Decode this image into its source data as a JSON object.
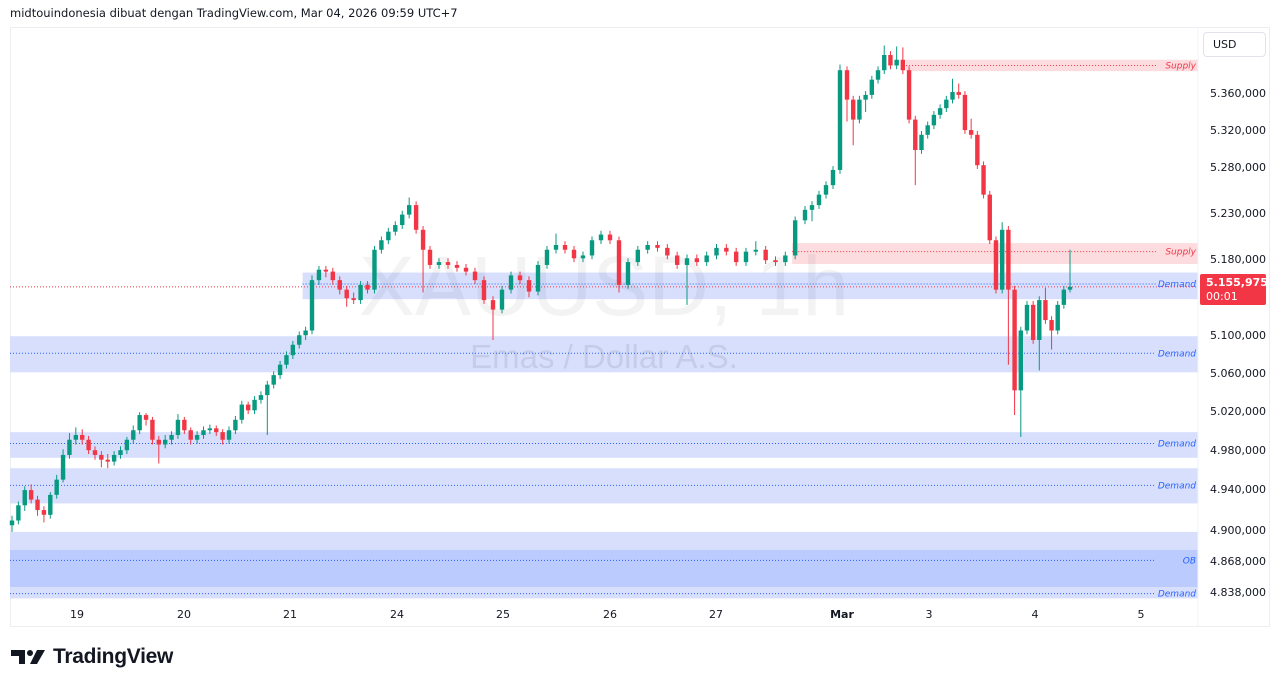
{
  "header": {
    "text": "midtouindonesia dibuat dengan TradingView.com, Mar 04, 2026 09:59 UTC+7"
  },
  "currency_button": "USD",
  "watermark": {
    "symbol": "XAUUSD, 1h",
    "description": "Emas / Dollar A.S."
  },
  "last_price": {
    "value": "5.155,975",
    "countdown": "00:01"
  },
  "brand": "TradingView",
  "colors": {
    "up": "#089981",
    "down": "#f23645",
    "demand": "#2962ff",
    "supply": "#f23645",
    "demand_fill": "#d7dffd",
    "ob_fill": "#bccbfd",
    "supply_fill": "#fcdcdf"
  },
  "chart_data": {
    "type": "candlestick",
    "symbol": "XAUUSD",
    "interval": "1h",
    "ylim": [
      4828,
      5420
    ],
    "y_ticks": [
      {
        "value": 5360,
        "label": "5.360,000"
      },
      {
        "value": 5320,
        "label": "5.320,000"
      },
      {
        "value": 5280,
        "label": "5.280,000"
      },
      {
        "value": 5230,
        "label": "5.230,000"
      },
      {
        "value": 5180,
        "label": "5.180,000"
      },
      {
        "value": 5100,
        "label": "5.100,000"
      },
      {
        "value": 5060,
        "label": "5.060,000"
      },
      {
        "value": 5020,
        "label": "5.020,000"
      },
      {
        "value": 4980,
        "label": "4.980,000"
      },
      {
        "value": 4940,
        "label": "4.940,000"
      },
      {
        "value": 4900,
        "label": "4.900,000"
      },
      {
        "value": 4868,
        "label": "4.868,000"
      },
      {
        "value": 4838,
        "label": "4.838,000"
      }
    ],
    "x_ticks": [
      "19",
      "20",
      "21",
      "24",
      "25",
      "26",
      "27",
      "Mar",
      "3",
      "4",
      "5"
    ],
    "zones": [
      {
        "label": "Supply",
        "kind": "supply",
        "top": 5395,
        "bottom": 5383,
        "line": 5389,
        "start_candle": 120
      },
      {
        "label": "Supply",
        "kind": "supply",
        "top": 5202,
        "bottom": 5180,
        "line": 5193,
        "start_candle": 103
      },
      {
        "label": "Demand",
        "kind": "demand",
        "top": 5171,
        "bottom": 5143,
        "line": 5159,
        "start_candle": 46
      },
      {
        "label": "Demand",
        "kind": "demand",
        "top": 5104,
        "bottom": 5066,
        "line": 5086,
        "start_candle": 0
      },
      {
        "label": "Demand",
        "kind": "demand",
        "top": 5003,
        "bottom": 4976,
        "line": 4991,
        "start_candle": 0
      },
      {
        "label": "Demand",
        "kind": "demand",
        "top": 4965,
        "bottom": 4928,
        "line": 4947,
        "start_candle": 0
      },
      {
        "label": "Demand",
        "kind": "demand",
        "top": 4898,
        "bottom": 4828,
        "line": 4833,
        "start_candle": 0
      },
      {
        "label": "OB",
        "kind": "ob",
        "top": 4879,
        "bottom": 4840,
        "line": 4868,
        "start_candle": 0
      }
    ],
    "ohlc": [
      [
        4905,
        4915,
        4898,
        4910
      ],
      [
        4910,
        4930,
        4906,
        4926
      ],
      [
        4926,
        4946,
        4920,
        4942
      ],
      [
        4942,
        4948,
        4928,
        4932
      ],
      [
        4932,
        4936,
        4915,
        4921
      ],
      [
        4921,
        4925,
        4908,
        4916
      ],
      [
        4916,
        4940,
        4912,
        4937
      ],
      [
        4937,
        4958,
        4933,
        4953
      ],
      [
        4953,
        4985,
        4950,
        4979
      ],
      [
        4979,
        5002,
        4975,
        4995
      ],
      [
        4995,
        5008,
        4990,
        5000
      ],
      [
        5000,
        5006,
        4990,
        4995
      ],
      [
        4995,
        4999,
        4980,
        4984
      ],
      [
        4984,
        4988,
        4974,
        4979
      ],
      [
        4979,
        4983,
        4966,
        4974
      ],
      [
        4974,
        4980,
        4965,
        4972
      ],
      [
        4972,
        4983,
        4968,
        4979
      ],
      [
        4979,
        4988,
        4975,
        4984
      ],
      [
        4984,
        4998,
        4980,
        4995
      ],
      [
        4995,
        5010,
        4991,
        5005
      ],
      [
        5005,
        5024,
        5001,
        5021
      ],
      [
        5021,
        5023,
        5010,
        5016
      ],
      [
        5016,
        5019,
        4990,
        4995
      ],
      [
        4995,
        4999,
        4970,
        4990
      ],
      [
        4990,
        5000,
        4986,
        4995
      ],
      [
        4995,
        5004,
        4990,
        5000
      ],
      [
        5000,
        5022,
        4996,
        5016
      ],
      [
        5016,
        5019,
        5001,
        5005
      ],
      [
        5005,
        5008,
        4990,
        4995
      ],
      [
        4995,
        5004,
        4991,
        5000
      ],
      [
        5000,
        5009,
        4996,
        5005
      ],
      [
        5005,
        5011,
        5001,
        5007
      ],
      [
        5007,
        5010,
        4999,
        5003
      ],
      [
        5003,
        5006,
        4990,
        4995
      ],
      [
        4995,
        5009,
        4991,
        5005
      ],
      [
        5005,
        5020,
        5001,
        5016
      ],
      [
        5016,
        5036,
        5012,
        5032
      ],
      [
        5032,
        5035,
        5022,
        5026
      ],
      [
        5026,
        5041,
        5022,
        5037
      ],
      [
        5037,
        5046,
        5033,
        5042
      ],
      [
        5042,
        5057,
        5000,
        5053
      ],
      [
        5053,
        5067,
        5049,
        5063
      ],
      [
        5063,
        5078,
        5059,
        5074
      ],
      [
        5074,
        5088,
        5070,
        5084
      ],
      [
        5084,
        5099,
        5080,
        5095
      ],
      [
        5095,
        5109,
        5091,
        5105
      ],
      [
        5105,
        5114,
        5100,
        5110
      ],
      [
        5110,
        5168,
        5106,
        5163
      ],
      [
        5163,
        5178,
        5158,
        5174
      ],
      [
        5174,
        5178,
        5166,
        5172
      ],
      [
        5172,
        5176,
        5158,
        5163
      ],
      [
        5163,
        5167,
        5148,
        5153
      ],
      [
        5153,
        5157,
        5135,
        5144
      ],
      [
        5144,
        5150,
        5138,
        5142
      ],
      [
        5142,
        5162,
        5138,
        5158
      ],
      [
        5158,
        5162,
        5149,
        5153
      ],
      [
        5153,
        5199,
        5149,
        5195
      ],
      [
        5195,
        5209,
        5191,
        5205
      ],
      [
        5205,
        5218,
        5201,
        5214
      ],
      [
        5214,
        5225,
        5210,
        5221
      ],
      [
        5221,
        5236,
        5217,
        5232
      ],
      [
        5232,
        5250,
        5228,
        5242
      ],
      [
        5242,
        5246,
        5212,
        5216
      ],
      [
        5216,
        5220,
        5150,
        5195
      ],
      [
        5195,
        5199,
        5175,
        5179
      ],
      [
        5179,
        5186,
        5175,
        5182
      ],
      [
        5182,
        5186,
        5175,
        5179
      ],
      [
        5179,
        5183,
        5172,
        5176
      ],
      [
        5176,
        5180,
        5168,
        5172
      ],
      [
        5172,
        5176,
        5159,
        5163
      ],
      [
        5163,
        5167,
        5138,
        5142
      ],
      [
        5142,
        5146,
        5100,
        5132
      ],
      [
        5132,
        5157,
        5128,
        5153
      ],
      [
        5153,
        5172,
        5149,
        5168
      ],
      [
        5168,
        5172,
        5159,
        5163
      ],
      [
        5163,
        5167,
        5145,
        5151
      ],
      [
        5151,
        5183,
        5147,
        5179
      ],
      [
        5179,
        5199,
        5175,
        5195
      ],
      [
        5195,
        5212,
        5191,
        5200
      ],
      [
        5200,
        5204,
        5191,
        5195
      ],
      [
        5195,
        5199,
        5182,
        5186
      ],
      [
        5186,
        5193,
        5182,
        5189
      ],
      [
        5189,
        5209,
        5185,
        5205
      ],
      [
        5205,
        5215,
        5201,
        5211
      ],
      [
        5211,
        5215,
        5201,
        5205
      ],
      [
        5205,
        5209,
        5150,
        5158
      ],
      [
        5158,
        5186,
        5154,
        5182
      ],
      [
        5182,
        5199,
        5178,
        5195
      ],
      [
        5195,
        5204,
        5191,
        5200
      ],
      [
        5200,
        5204,
        5193,
        5197
      ],
      [
        5197,
        5201,
        5185,
        5189
      ],
      [
        5189,
        5193,
        5175,
        5179
      ],
      [
        5179,
        5190,
        5137,
        5186
      ],
      [
        5186,
        5190,
        5178,
        5182
      ],
      [
        5182,
        5193,
        5178,
        5189
      ],
      [
        5189,
        5201,
        5185,
        5197
      ],
      [
        5197,
        5201,
        5189,
        5193
      ],
      [
        5193,
        5197,
        5178,
        5182
      ],
      [
        5182,
        5197,
        5178,
        5193
      ],
      [
        5193,
        5204,
        5189,
        5195
      ],
      [
        5195,
        5199,
        5180,
        5184
      ],
      [
        5184,
        5188,
        5178,
        5182
      ],
      [
        5182,
        5193,
        5178,
        5189
      ],
      [
        5189,
        5230,
        5185,
        5226
      ],
      [
        5226,
        5241,
        5222,
        5237
      ],
      [
        5237,
        5246,
        5225,
        5242
      ],
      [
        5242,
        5257,
        5238,
        5253
      ],
      [
        5253,
        5267,
        5249,
        5263
      ],
      [
        5263,
        5283,
        5259,
        5279
      ],
      [
        5279,
        5390,
        5275,
        5384
      ],
      [
        5384,
        5388,
        5330,
        5353
      ],
      [
        5353,
        5357,
        5305,
        5332
      ],
      [
        5332,
        5357,
        5328,
        5353
      ],
      [
        5353,
        5362,
        5340,
        5358
      ],
      [
        5358,
        5378,
        5354,
        5374
      ],
      [
        5374,
        5388,
        5370,
        5384
      ],
      [
        5384,
        5410,
        5380,
        5400
      ],
      [
        5400,
        5404,
        5385,
        5389
      ],
      [
        5389,
        5409,
        5385,
        5395
      ],
      [
        5395,
        5408,
        5380,
        5384
      ],
      [
        5384,
        5388,
        5328,
        5332
      ],
      [
        5332,
        5336,
        5263,
        5300
      ],
      [
        5300,
        5320,
        5296,
        5316
      ],
      [
        5316,
        5330,
        5312,
        5326
      ],
      [
        5326,
        5341,
        5322,
        5337
      ],
      [
        5337,
        5348,
        5333,
        5344
      ],
      [
        5344,
        5357,
        5340,
        5353
      ],
      [
        5353,
        5375,
        5349,
        5361
      ],
      [
        5361,
        5370,
        5354,
        5358
      ],
      [
        5358,
        5362,
        5317,
        5321
      ],
      [
        5321,
        5333,
        5312,
        5316
      ],
      [
        5316,
        5320,
        5280,
        5284
      ],
      [
        5284,
        5288,
        5249,
        5253
      ],
      [
        5253,
        5257,
        5201,
        5205
      ],
      [
        5205,
        5209,
        5149,
        5153
      ],
      [
        5153,
        5224,
        5149,
        5216
      ],
      [
        5216,
        5220,
        5074,
        5153
      ],
      [
        5153,
        5157,
        5021,
        5047
      ],
      [
        5047,
        5114,
        4998,
        5110
      ],
      [
        5110,
        5141,
        5106,
        5137
      ],
      [
        5137,
        5141,
        5096,
        5100
      ],
      [
        5100,
        5146,
        5068,
        5142
      ],
      [
        5142,
        5155,
        5117,
        5121
      ],
      [
        5121,
        5125,
        5090,
        5110
      ],
      [
        5110,
        5141,
        5106,
        5137
      ],
      [
        5137,
        5157,
        5133,
        5153
      ],
      [
        5153,
        5195,
        5150,
        5155.975
      ]
    ]
  }
}
